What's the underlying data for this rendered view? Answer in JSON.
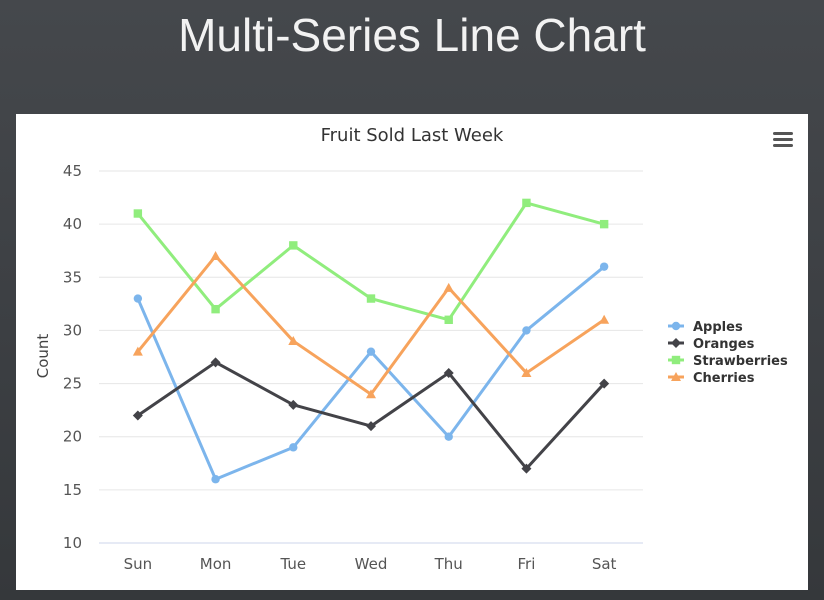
{
  "page": {
    "title": "Multi-Series Line Chart"
  },
  "chart_data": {
    "type": "line",
    "title": "Fruit Sold Last Week",
    "xlabel": "",
    "ylabel": "Count",
    "ylim": [
      10,
      45
    ],
    "yticks": [
      10,
      15,
      20,
      25,
      30,
      35,
      40,
      45
    ],
    "grid": true,
    "legend_position": "right",
    "categories": [
      "Sun",
      "Mon",
      "Tue",
      "Wed",
      "Thu",
      "Fri",
      "Sat"
    ],
    "series": [
      {
        "name": "Apples",
        "color": "#7cb5ec",
        "marker": "circle",
        "values": [
          33,
          16,
          19,
          28,
          20,
          30,
          36
        ]
      },
      {
        "name": "Oranges",
        "color": "#434348",
        "marker": "diamond",
        "values": [
          22,
          27,
          23,
          21,
          26,
          17,
          25
        ]
      },
      {
        "name": "Strawberries",
        "color": "#90ed7d",
        "marker": "square",
        "values": [
          41,
          32,
          38,
          33,
          31,
          42,
          40
        ]
      },
      {
        "name": "Cherries",
        "color": "#f7a35c",
        "marker": "triangle",
        "values": [
          28,
          37,
          29,
          24,
          34,
          26,
          31
        ]
      }
    ]
  },
  "toolbar": {
    "menu_icon": "hamburger-menu-icon"
  }
}
